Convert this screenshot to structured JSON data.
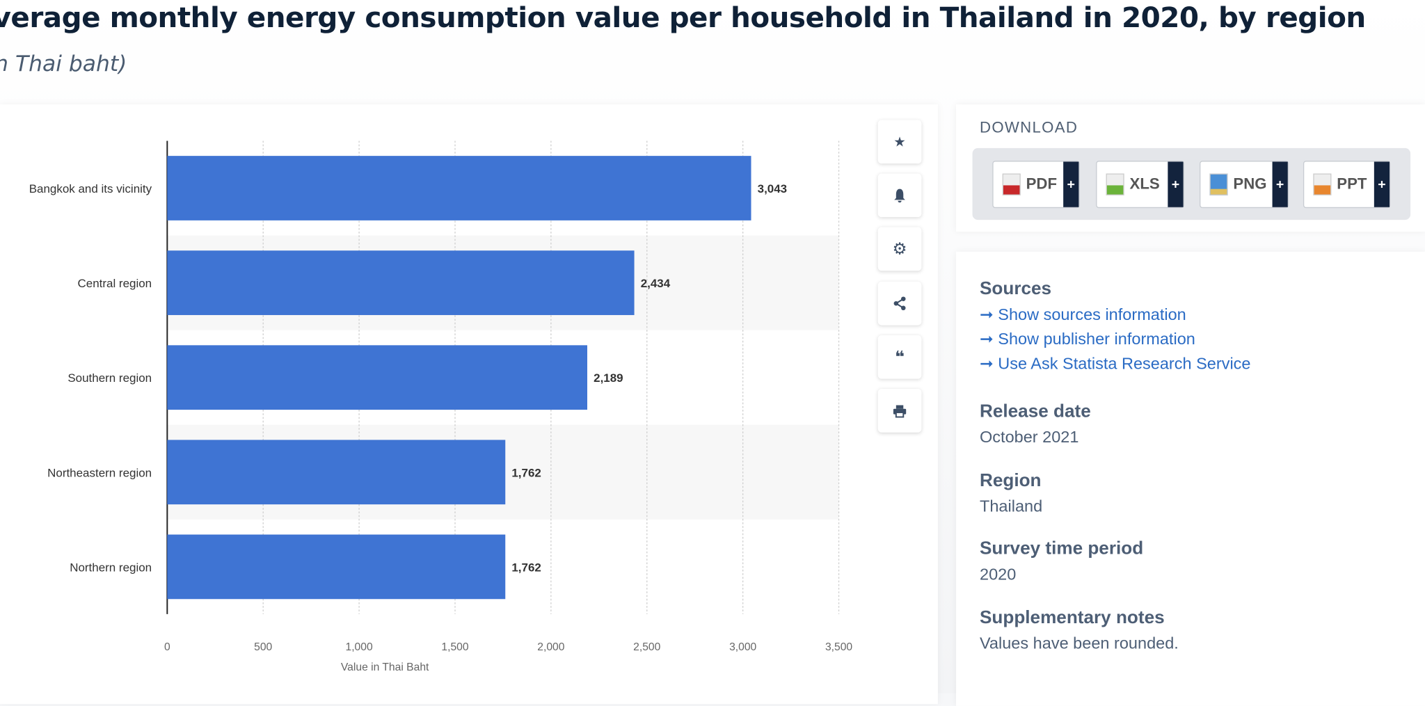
{
  "header": {
    "title": "verage monthly energy consumption value per household in Thailand in 2020, by region",
    "subtitle": "n Thai baht)"
  },
  "chart_data": {
    "type": "bar",
    "orientation": "horizontal",
    "categories": [
      "Bangkok and its vicinity",
      "Central region",
      "Southern region",
      "Northeastern region",
      "Northern region"
    ],
    "values": [
      3043,
      2434,
      2189,
      1762,
      1762
    ],
    "value_labels": [
      "3,043",
      "2,434",
      "2,189",
      "1,762",
      "1,762"
    ],
    "xlabel": "Value in Thai Baht",
    "xlim": [
      0,
      3500
    ],
    "xticks": [
      "0",
      "500",
      "1,000",
      "1,500",
      "2,000",
      "2,500",
      "3,000",
      "3,500"
    ],
    "grid": "vertical dotted",
    "bar_color": "#3f74d3"
  },
  "tools": [
    {
      "icon": "star-icon"
    },
    {
      "icon": "bell-icon"
    },
    {
      "icon": "gear-icon"
    },
    {
      "icon": "share-icon"
    },
    {
      "icon": "quote-icon"
    },
    {
      "icon": "print-icon"
    }
  ],
  "download": {
    "heading": "DOWNLOAD",
    "buttons": [
      {
        "label": "PDF",
        "color": "#c8282a"
      },
      {
        "label": "XLS",
        "color": "#6bb33a"
      },
      {
        "label": "PNG",
        "color": "#4a8fd6"
      },
      {
        "label": "PPT",
        "color": "#e8862e"
      }
    ],
    "plus": "+"
  },
  "meta": {
    "sources_heading": "Sources",
    "links": [
      "Show sources information",
      "Show publisher information",
      "Use Ask Statista Research Service"
    ],
    "arrow": "➞",
    "release_heading": "Release date",
    "release": "October 2021",
    "region_heading": "Region",
    "region": "Thailand",
    "period_heading": "Survey time period",
    "period": "2020",
    "notes_heading": "Supplementary notes",
    "notes": "Values have been rounded."
  }
}
